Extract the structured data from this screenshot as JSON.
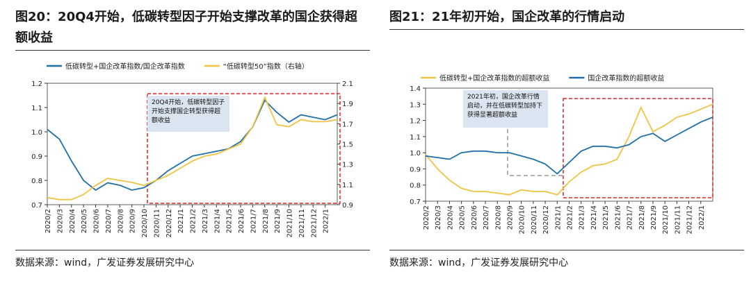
{
  "chart_data": [
    {
      "type": "line",
      "title": "图20：20Q4开始，低碳转型因子开始支撑改革的国企获得超额收益",
      "source": "数据来源：wind，广发证券发展研究中心",
      "annotation": "20Q4开始，低碳转型因子开始支撑国企转型获得超额收益",
      "categories": [
        "2020/2",
        "2020/3",
        "2020/4",
        "2020/5",
        "2020/6",
        "2020/7",
        "2020/8",
        "2020/9",
        "2020/10",
        "2020/11",
        "2020/12",
        "2021/1",
        "2021/2",
        "2021/3",
        "2021/4",
        "2021/5",
        "2021/6",
        "2021/7",
        "2021/8",
        "2021/9",
        "2021/10",
        "2021/11",
        "2021/12",
        "2022/1",
        null
      ],
      "series": [
        {
          "name": "低碳转型+国企改革指数/国企改革指数",
          "color": "#1f6fa8",
          "values": [
            1.01,
            0.97,
            0.88,
            0.8,
            0.76,
            0.79,
            0.78,
            0.76,
            0.77,
            0.8,
            0.84,
            0.87,
            0.9,
            0.91,
            0.92,
            0.93,
            0.96,
            1.02,
            1.13,
            1.08,
            1.04,
            1.07,
            1.06,
            1.05,
            1.07
          ]
        },
        {
          "name": "“低碳转型50”指数（右轴）",
          "color": "#f0c342",
          "axis": "y2",
          "values": [
            0.97,
            0.95,
            0.95,
            1.0,
            1.09,
            1.16,
            1.14,
            1.12,
            1.09,
            1.14,
            1.19,
            1.26,
            1.33,
            1.38,
            1.4,
            1.45,
            1.5,
            1.67,
            1.96,
            1.69,
            1.67,
            1.74,
            1.72,
            1.72,
            1.74
          ]
        }
      ],
      "ylim": [
        0.7,
        1.2
      ],
      "yticks": [
        0.7,
        0.8,
        0.9,
        {
          "value": 1,
          "label": "1.0"
        },
        1.1,
        1.2
      ],
      "y2lim": [
        0.9,
        2.1
      ],
      "y2ticks": [
        0.9,
        1.1,
        1.3,
        1.5,
        1.7,
        1.9,
        2.1
      ]
    },
    {
      "type": "line",
      "title": "图21：21年初开始，国企改革的行情启动",
      "source": "数据来源：wind，广发证券发展研究中心",
      "annotation": "2021年初，国企改革行情启动，并在低碳转型加持下获得显著超额收益",
      "categories": [
        "2020/2",
        "2020/3",
        "2020/4",
        "2020/5",
        "2020/6",
        "2020/7",
        "2020/8",
        "2020/9",
        "2020/10",
        "2020/11",
        "2020/12",
        "2021/1",
        "2021/2",
        "2021/3",
        "2021/4",
        "2021/5",
        "2021/6",
        "2021/7",
        "2021/8",
        "2021/9",
        "2021/10",
        "2021/11",
        "2021/12",
        "2022/1",
        null
      ],
      "series": [
        {
          "name": "低碳转型+国企改革指数的超额收益",
          "color": "#f0c342",
          "values": [
            0.99,
            0.9,
            0.83,
            0.78,
            0.76,
            0.76,
            0.75,
            0.74,
            0.77,
            0.76,
            0.76,
            0.74,
            0.82,
            0.88,
            0.92,
            0.93,
            0.96,
            1.1,
            1.28,
            1.13,
            1.17,
            1.22,
            1.24,
            1.27,
            1.3
          ]
        },
        {
          "name": "国企改革指数的超额收益",
          "color": "#1f6fa8",
          "values": [
            0.98,
            0.97,
            0.96,
            1.0,
            1.01,
            1.01,
            1.0,
            1.0,
            0.98,
            0.96,
            0.93,
            0.87,
            0.94,
            1.01,
            1.04,
            1.04,
            1.03,
            1.05,
            1.1,
            1.12,
            1.07,
            1.11,
            1.15,
            1.19,
            1.22
          ]
        }
      ],
      "ylim": [
        0.7,
        1.4
      ],
      "yticks": [
        0.7,
        0.8,
        0.9,
        {
          "value": 1,
          "label": "1.0"
        },
        1.1,
        1.2,
        1.3,
        1.4
      ]
    }
  ]
}
